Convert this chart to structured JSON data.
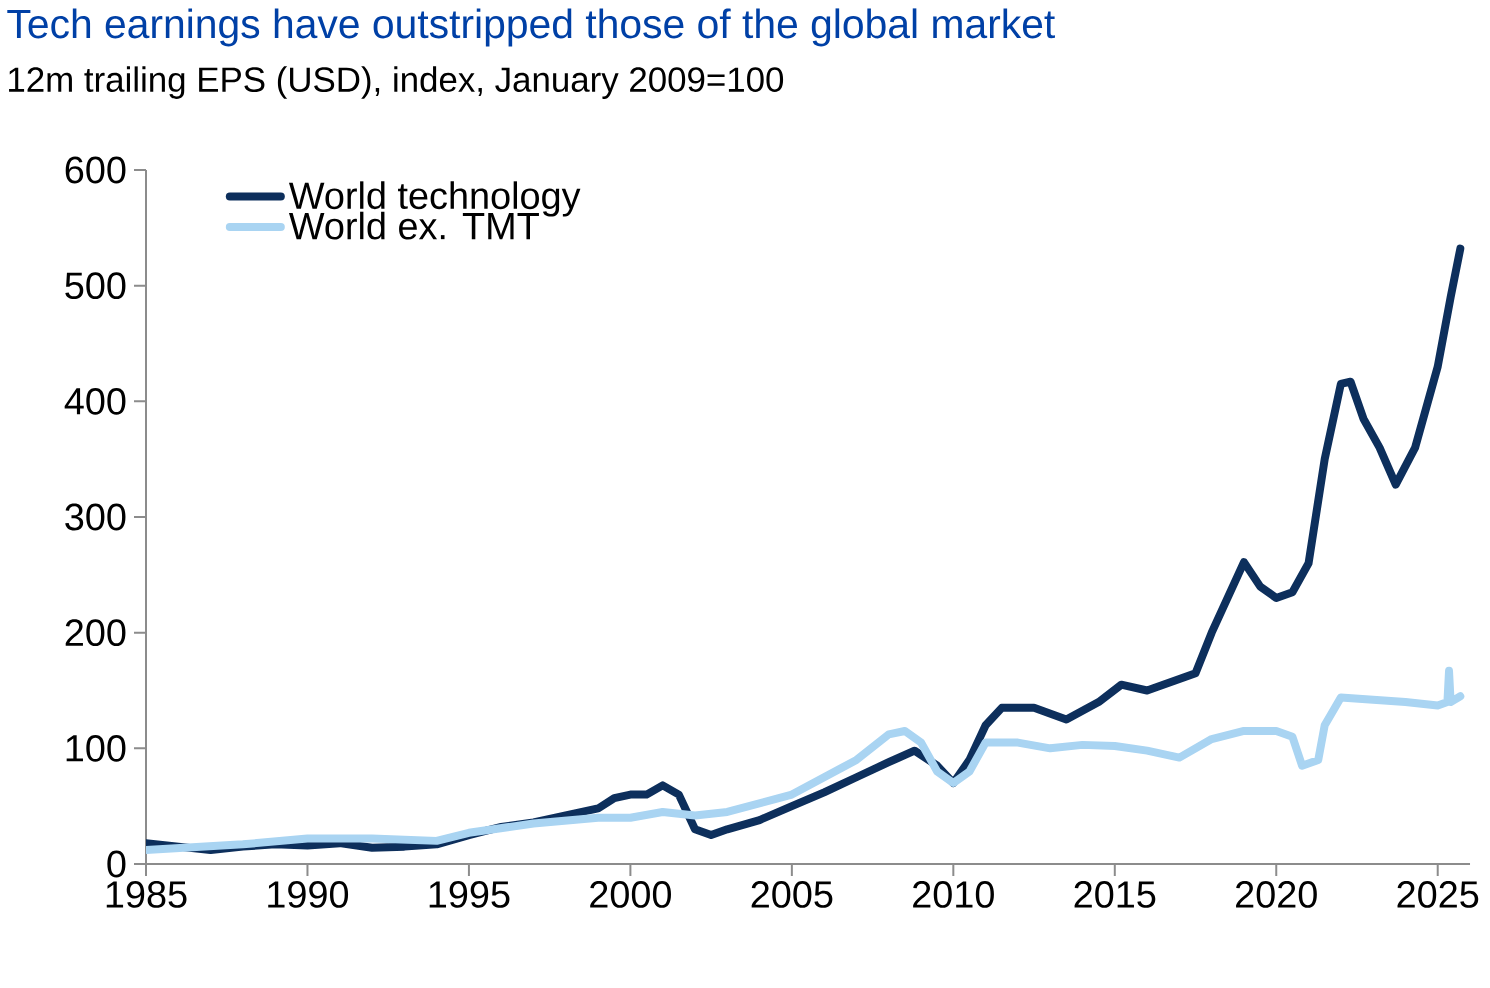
{
  "chart_data": {
    "type": "line",
    "title": "Tech earnings have outstripped those of the global market",
    "subtitle": "12m trailing EPS (USD), index, January 2009=100",
    "xlim": [
      1985,
      2026
    ],
    "xticks": [
      1985,
      1990,
      1995,
      2000,
      2005,
      2010,
      2015,
      2020,
      2025
    ],
    "ylim": [
      0,
      600
    ],
    "yticks": [
      0,
      100,
      200,
      300,
      400,
      500,
      600
    ],
    "legend": "top left",
    "grid": false,
    "marker": "none",
    "line_style": "solid",
    "series": [
      {
        "name": "World technology",
        "color": "#0d2f5c",
        "x": [
          1985,
          1986,
          1987,
          1988,
          1989,
          1990,
          1991,
          1992,
          1993,
          1994,
          1995,
          1996,
          1997,
          1998,
          1999,
          1999.5,
          2000,
          2000.5,
          2001,
          2001.5,
          2002,
          2002.5,
          2003,
          2004,
          2005,
          2006,
          2007,
          2008,
          2008.8,
          2009.5,
          2010,
          2010.5,
          2011,
          2011.5,
          2012.5,
          2013.5,
          2014.5,
          2015.2,
          2016,
          2017,
          2017.5,
          2018,
          2019,
          2019.5,
          2020,
          2020.5,
          2021,
          2021.5,
          2022,
          2022.3,
          2022.7,
          2023.2,
          2023.7,
          2024.3,
          2025,
          2025.4,
          2025.7
        ],
        "values": [
          18,
          15,
          12,
          15,
          17,
          16,
          18,
          14,
          15,
          17,
          25,
          32,
          36,
          42,
          48,
          57,
          60,
          60,
          68,
          60,
          30,
          25,
          30,
          38,
          50,
          62,
          75,
          88,
          98,
          85,
          70,
          90,
          120,
          135,
          135,
          125,
          140,
          155,
          150,
          160,
          165,
          200,
          261,
          240,
          230,
          235,
          260,
          350,
          415,
          417,
          385,
          360,
          328,
          360,
          430,
          490,
          532
        ]
      },
      {
        "name": "World ex. TMT",
        "color": "#a9d4f2",
        "x": [
          1985,
          1988,
          1990,
          1992,
          1994,
          1995,
          1997,
          1999,
          2000,
          2001,
          2002,
          2003,
          2005,
          2007,
          2008,
          2008.5,
          2009,
          2009.5,
          2010,
          2010.5,
          2011,
          2012,
          2013,
          2014,
          2015,
          2016,
          2017,
          2018,
          2019,
          2020,
          2020.5,
          2020.8,
          2021.3,
          2021.5,
          2022,
          2023,
          2024,
          2025,
          2025.3,
          2025.35,
          2025.4,
          2025.7
        ],
        "values": [
          12,
          17,
          22,
          22,
          20,
          27,
          35,
          40,
          40,
          45,
          42,
          45,
          60,
          90,
          112,
          115,
          105,
          80,
          70,
          80,
          105,
          105,
          100,
          103,
          102,
          98,
          92,
          108,
          115,
          115,
          110,
          85,
          90,
          120,
          144,
          142,
          140,
          137,
          140,
          167,
          140,
          145
        ]
      }
    ]
  }
}
